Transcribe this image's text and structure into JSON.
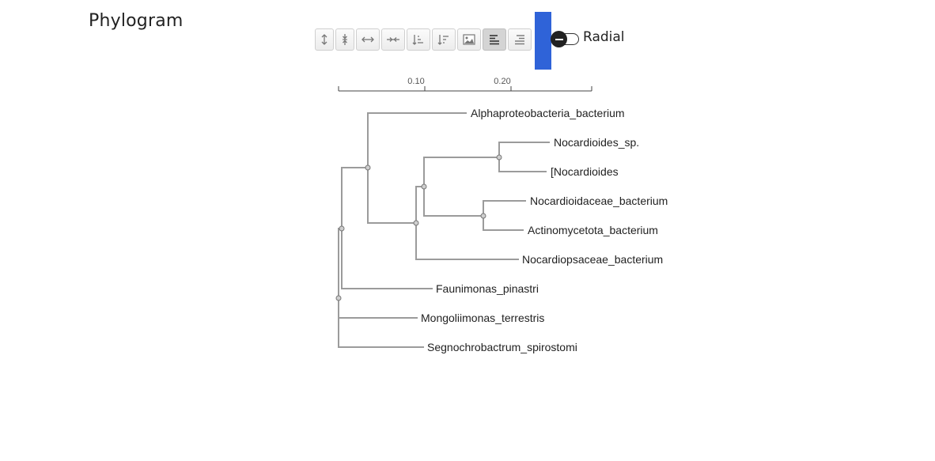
{
  "title": "Phylogram",
  "toolbar": {
    "buttons": [
      {
        "name": "expand-vertical-button",
        "icon": "expand-vertical-icon",
        "active": false
      },
      {
        "name": "compress-vertical-button",
        "icon": "compress-vertical-icon",
        "active": false
      },
      {
        "name": "expand-horizontal-button",
        "icon": "expand-horizontal-icon",
        "active": false
      },
      {
        "name": "compress-horizontal-button",
        "icon": "compress-horizontal-icon",
        "active": false
      },
      {
        "name": "sort-ascending-button",
        "icon": "sort-ascending-icon",
        "active": false
      },
      {
        "name": "sort-descending-button",
        "icon": "sort-descending-icon",
        "active": false
      },
      {
        "name": "save-image-button",
        "icon": "image-icon",
        "active": false
      },
      {
        "name": "align-left-button",
        "icon": "align-left-icon",
        "active": true
      },
      {
        "name": "align-right-button",
        "icon": "align-right-icon",
        "active": false
      }
    ]
  },
  "toggle": {
    "label": "Radial",
    "checked": false
  },
  "scale": {
    "ticks": [
      {
        "value": 0.1,
        "label": "0.10"
      },
      {
        "value": 0.2,
        "label": "0.20"
      }
    ],
    "max": 0.29
  },
  "tree": {
    "leaves": [
      "Alphaproteobacteria_bacterium",
      "Nocardioides_sp.",
      "[Nocardioides",
      "Nocardioidaceae_bacterium",
      "Actinomycetota_bacterium",
      "Nocardiopsaceae_bacterium",
      "Faunimonas_pinastri",
      "Mongoliimonas_terrestris",
      "Segnochrobactrum_spirostomi"
    ]
  },
  "colors": {
    "accent": "#2f63d8",
    "branch": "#9b9b9b"
  }
}
